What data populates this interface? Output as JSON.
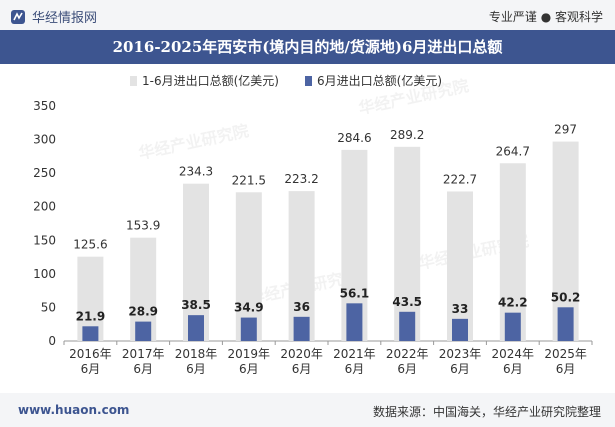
{
  "header": {
    "brand": "华经情报网",
    "tags": "专业严谨 ● 客观科学"
  },
  "title": "2016-2025年西安市(境内目的地/货源地)6月进出口总额",
  "footer": {
    "url": "www.huaon.com",
    "source": "数据来源：中国海关，华经产业研究院整理"
  },
  "watermark": "华经产业研究院",
  "colors": {
    "series1": "#e3e3e3",
    "series2": "#4d64a3",
    "title_bg": "#3d5590"
  },
  "chart_data": {
    "type": "bar",
    "categories": [
      "2016年\n6月",
      "2017年\n6月",
      "2018年\n6月",
      "2019年\n6月",
      "2020年\n6月",
      "2021年\n6月",
      "2022年\n6月",
      "2023年\n6月",
      "2024年\n6月",
      "2025年\n6月"
    ],
    "series": [
      {
        "name": "1-6月进出口总额(亿美元)",
        "values": [
          125.6,
          153.9,
          234.3,
          221.5,
          223.2,
          284.6,
          289.2,
          222.7,
          264.7,
          297
        ]
      },
      {
        "name": "6月进出口总额(亿美元)",
        "values": [
          21.9,
          28.9,
          38.5,
          34.9,
          36,
          56.1,
          43.5,
          33,
          42.2,
          50.2
        ]
      }
    ],
    "ylim": [
      0,
      350
    ],
    "yticks": [
      0,
      50,
      100,
      150,
      200,
      250,
      300,
      350
    ],
    "legend": "top",
    "grid": false
  }
}
